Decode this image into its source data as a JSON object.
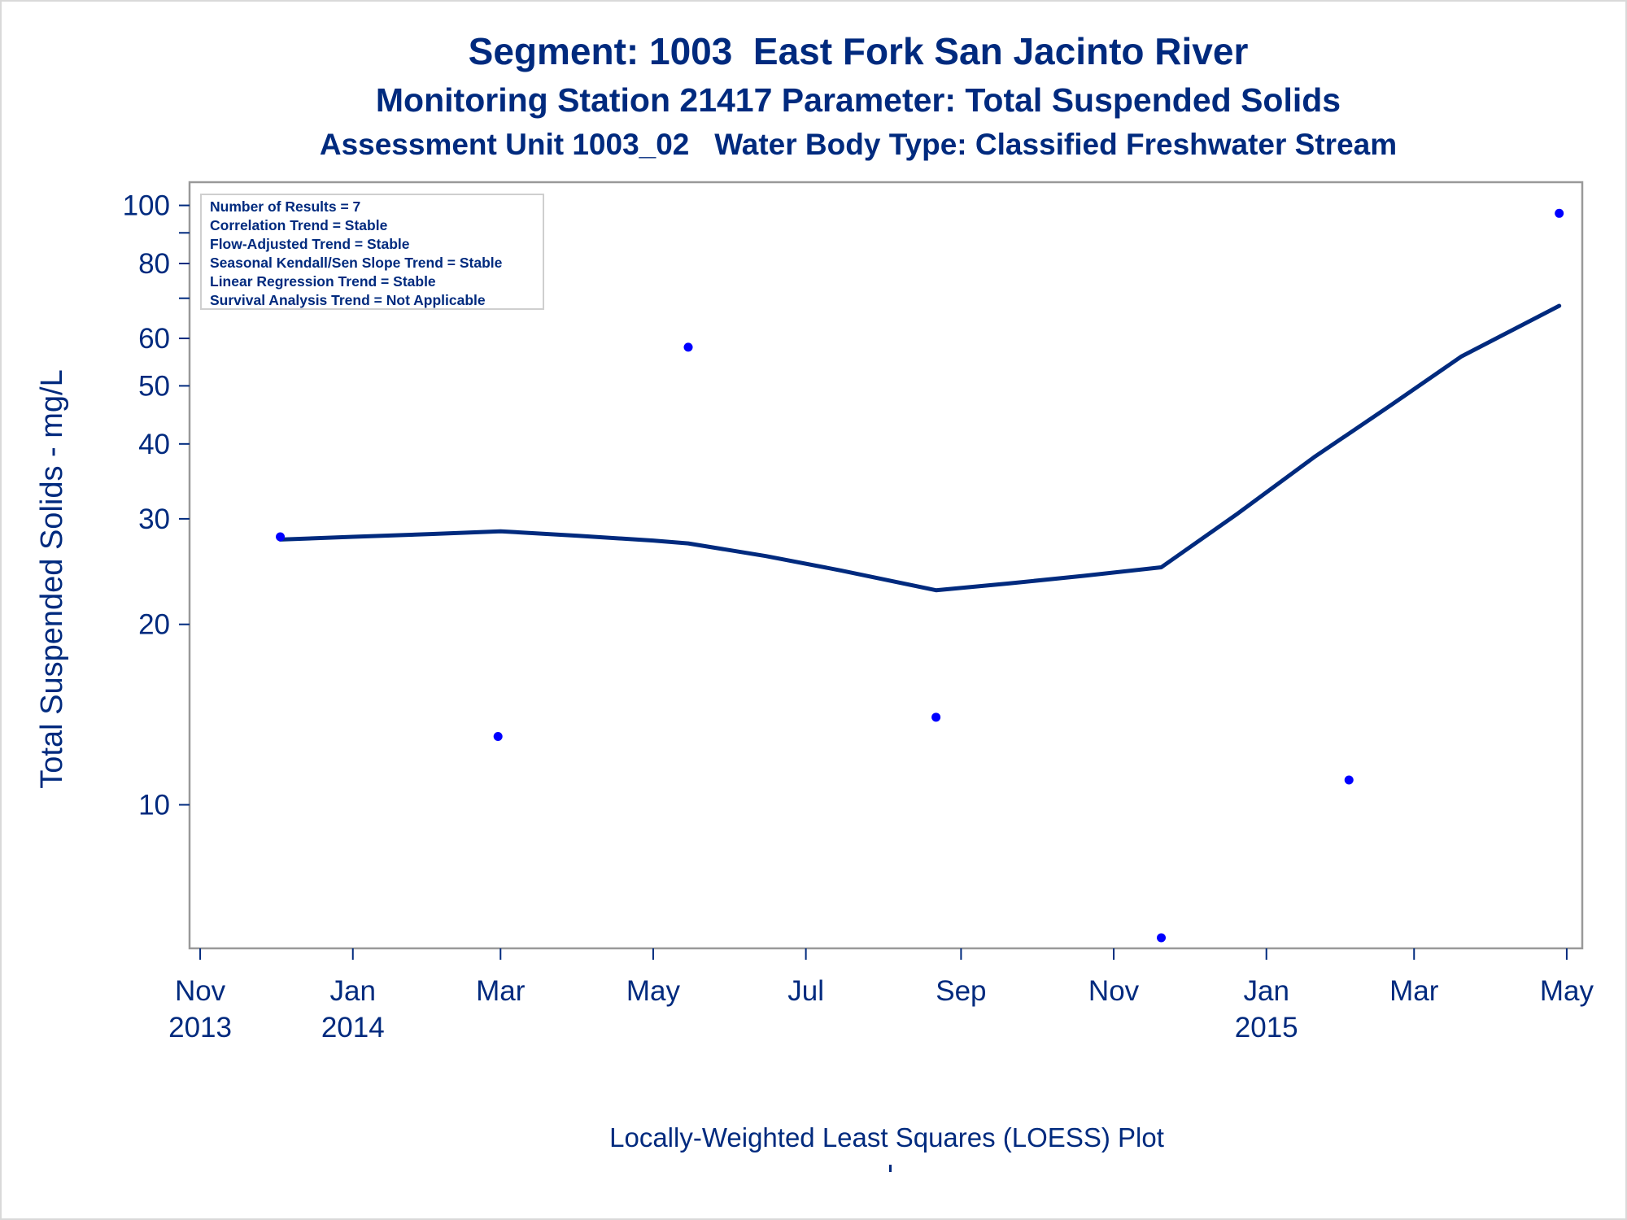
{
  "titles": {
    "line1": "Segment: 1003  East Fork San Jacinto River",
    "line2": "Monitoring Station 21417 Parameter: Total Suspended Solids",
    "line3": "Assessment Unit 1003_02   Water Body Type: Classified Freshwater Stream"
  },
  "footnote": "Locally-Weighted Least Squares (LOESS) Plot",
  "stats_box": [
    "Number of Results = 7",
    "Correlation Trend = Stable",
    "Flow-Adjusted Trend = Stable",
    "Seasonal Kendall/Sen Slope Trend = Stable",
    "Linear Regression Trend = Stable",
    "Survival Analysis Trend = Not Applicable"
  ],
  "colors": {
    "text": "#002a7e",
    "points": "#0000ff",
    "loess_line": "#002a7e",
    "axis": "#999999"
  },
  "chart_data": {
    "type": "scatter",
    "title": "Segment: 1003  East Fork San Jacinto River",
    "ylabel": "Total Suspended Solids - mg/L",
    "xlabel": "",
    "y_scale": "log",
    "ylim": [
      6,
      104
    ],
    "xlim": [
      "2013-10-31",
      "2015-05-02"
    ],
    "y_ticks": [
      10,
      20,
      30,
      40,
      50,
      60,
      80,
      100
    ],
    "x_ticks": [
      {
        "date": "2013-11-01",
        "label": [
          "Nov",
          "2013"
        ]
      },
      {
        "date": "2014-01-01",
        "label": [
          "Jan",
          "2014"
        ]
      },
      {
        "date": "2014-03-01",
        "label": [
          "Mar",
          ""
        ]
      },
      {
        "date": "2014-05-01",
        "label": [
          "May",
          ""
        ]
      },
      {
        "date": "2014-07-01",
        "label": [
          "Jul",
          ""
        ]
      },
      {
        "date": "2014-09-01",
        "label": [
          "Sep",
          ""
        ]
      },
      {
        "date": "2014-11-01",
        "label": [
          "Nov",
          ""
        ]
      },
      {
        "date": "2015-01-01",
        "label": [
          "Jan",
          "2015"
        ]
      },
      {
        "date": "2015-03-01",
        "label": [
          "Mar",
          ""
        ]
      },
      {
        "date": "2015-05-01",
        "label": [
          "May",
          ""
        ]
      }
    ],
    "points": [
      {
        "x": "2013-12-03",
        "y": 28
      },
      {
        "x": "2014-02-28",
        "y": 13
      },
      {
        "x": "2014-05-15",
        "y": 58
      },
      {
        "x": "2014-08-22",
        "y": 14
      },
      {
        "x": "2014-11-20",
        "y": 6
      },
      {
        "x": "2015-02-03",
        "y": 11
      },
      {
        "x": "2015-04-28",
        "y": 97
      }
    ],
    "loess": [
      {
        "x": "2013-12-03",
        "y": 27.7
      },
      {
        "x": "2014-01-01",
        "y": 28.0
      },
      {
        "x": "2014-02-01",
        "y": 28.3
      },
      {
        "x": "2014-03-01",
        "y": 28.6
      },
      {
        "x": "2014-04-01",
        "y": 28.1
      },
      {
        "x": "2014-05-01",
        "y": 27.6
      },
      {
        "x": "2014-05-15",
        "y": 27.3
      },
      {
        "x": "2014-06-15",
        "y": 26.0
      },
      {
        "x": "2014-07-15",
        "y": 24.6
      },
      {
        "x": "2014-08-22",
        "y": 22.8
      },
      {
        "x": "2014-09-20",
        "y": 23.4
      },
      {
        "x": "2014-10-20",
        "y": 24.1
      },
      {
        "x": "2014-11-20",
        "y": 24.9
      },
      {
        "x": "2014-12-20",
        "y": 30.5
      },
      {
        "x": "2015-01-20",
        "y": 38.0
      },
      {
        "x": "2015-02-20",
        "y": 46.5
      },
      {
        "x": "2015-03-20",
        "y": 56.0
      },
      {
        "x": "2015-04-28",
        "y": 68.0
      }
    ]
  }
}
